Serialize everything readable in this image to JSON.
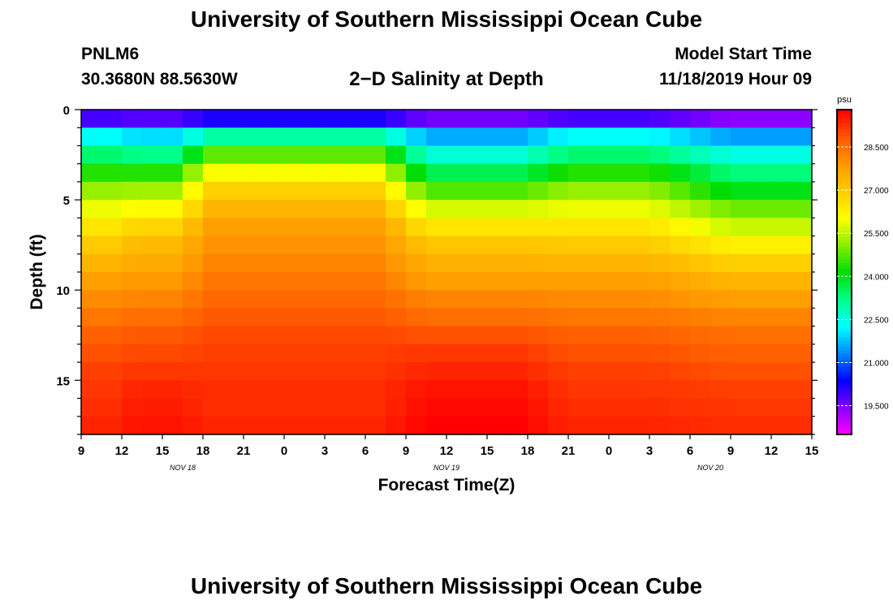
{
  "page": {
    "title_top": "University of Southern Mississippi Ocean Cube",
    "title_bottom": "University of Southern Mississippi Ocean Cube",
    "station": "PNLM6",
    "coords": "30.3680N 88.5630W",
    "subtitle": "2−D Salinity at Depth",
    "model_start_label": "Model Start Time",
    "model_start_value": "11/18/2019 Hour 09"
  },
  "colors": {
    "background": "#ffffff",
    "axis": "#000000",
    "colormap": [
      "#ff00ff",
      "#8800ff",
      "#0000ff",
      "#0088ff",
      "#00ffff",
      "#00ff88",
      "#00dd00",
      "#88ee00",
      "#ffff00",
      "#ffcc00",
      "#ff9900",
      "#ff5500",
      "#ff0000"
    ]
  },
  "chart_data": {
    "type": "heatmap",
    "title": "2−D Salinity at Depth",
    "xlabel": "Forecast Time(Z)",
    "ylabel": "Depth (ft)",
    "colorbar_label": "psu",
    "color_range": [
      18.5,
      29.8
    ],
    "x_range_hours": [
      0,
      54
    ],
    "y_range_ft": [
      0,
      18
    ],
    "x_tick_labels": [
      "9",
      "12",
      "15",
      "18",
      "21",
      "0",
      "3",
      "6",
      "9",
      "12",
      "15",
      "18",
      "21",
      "0",
      "3",
      "6",
      "9",
      "12",
      "15"
    ],
    "y_ticks": [
      0,
      5,
      10,
      15
    ],
    "y_tick_labels": [
      "0",
      "5",
      "10",
      "15"
    ],
    "date_labels": [
      {
        "text": "NOV 18",
        "hour": 7.5
      },
      {
        "text": "NOV 19",
        "hour": 27
      },
      {
        "text": "NOV 20",
        "hour": 46.5
      }
    ],
    "colorbar_ticks": [
      "19.500",
      "21.000",
      "22.500",
      "24.000",
      "25.500",
      "27.000",
      "28.500"
    ],
    "colorbar_tick_values": [
      19.5,
      21.0,
      22.5,
      24.0,
      25.5,
      27.0,
      28.5
    ],
    "depths_ft": [
      0,
      1,
      2,
      3,
      4,
      5,
      6,
      7,
      8,
      9,
      10,
      11,
      12,
      13,
      14,
      15,
      16,
      17,
      18
    ],
    "times_hours": [
      0,
      6,
      12,
      18,
      24,
      30,
      36,
      42,
      48,
      54
    ],
    "sal_profiles": {
      "A": [
        19.8,
        22.0,
        23.2,
        24.4,
        25.3,
        26.1,
        26.8,
        27.3,
        27.6,
        27.9,
        28.2,
        28.5,
        28.8,
        29.0,
        29.2,
        29.4,
        29.5,
        29.6,
        29.6
      ],
      "B": [
        20.2,
        23.0,
        24.8,
        26.0,
        26.9,
        27.4,
        27.8,
        28.0,
        28.2,
        28.4,
        28.6,
        28.8,
        29.0,
        29.1,
        29.2,
        29.3,
        29.3,
        29.4,
        29.4
      ],
      "C": [
        19.6,
        21.6,
        22.6,
        23.6,
        24.7,
        25.7,
        26.5,
        27.1,
        27.5,
        27.8,
        28.2,
        28.5,
        28.9,
        29.2,
        29.4,
        29.6,
        29.7,
        29.8,
        29.8
      ],
      "D": [
        19.9,
        22.3,
        23.4,
        24.4,
        25.2,
        25.9,
        26.5,
        27.0,
        27.4,
        27.8,
        28.1,
        28.4,
        28.7,
        28.9,
        29.1,
        29.2,
        29.3,
        29.4,
        29.4
      ],
      "E": [
        19.4,
        21.5,
        22.5,
        23.3,
        24.0,
        24.9,
        25.6,
        26.3,
        26.9,
        27.4,
        27.8,
        28.2,
        28.5,
        28.7,
        28.9,
        29.1,
        29.2,
        29.3,
        29.3
      ]
    },
    "profile_by_time": [
      {
        "hour": 0,
        "profile": "D"
      },
      {
        "hour": 2.5,
        "profile": "D"
      },
      {
        "hour": 4,
        "profile": "A"
      },
      {
        "hour": 7,
        "profile": "A"
      },
      {
        "hour": 9.5,
        "profile": "B"
      },
      {
        "hour": 22,
        "profile": "B"
      },
      {
        "hour": 25.5,
        "profile": "C"
      },
      {
        "hour": 32.5,
        "profile": "C"
      },
      {
        "hour": 36,
        "profile": "D"
      },
      {
        "hour": 42,
        "profile": "D"
      },
      {
        "hour": 48,
        "profile": "E"
      },
      {
        "hour": 54,
        "profile": "E"
      }
    ]
  }
}
